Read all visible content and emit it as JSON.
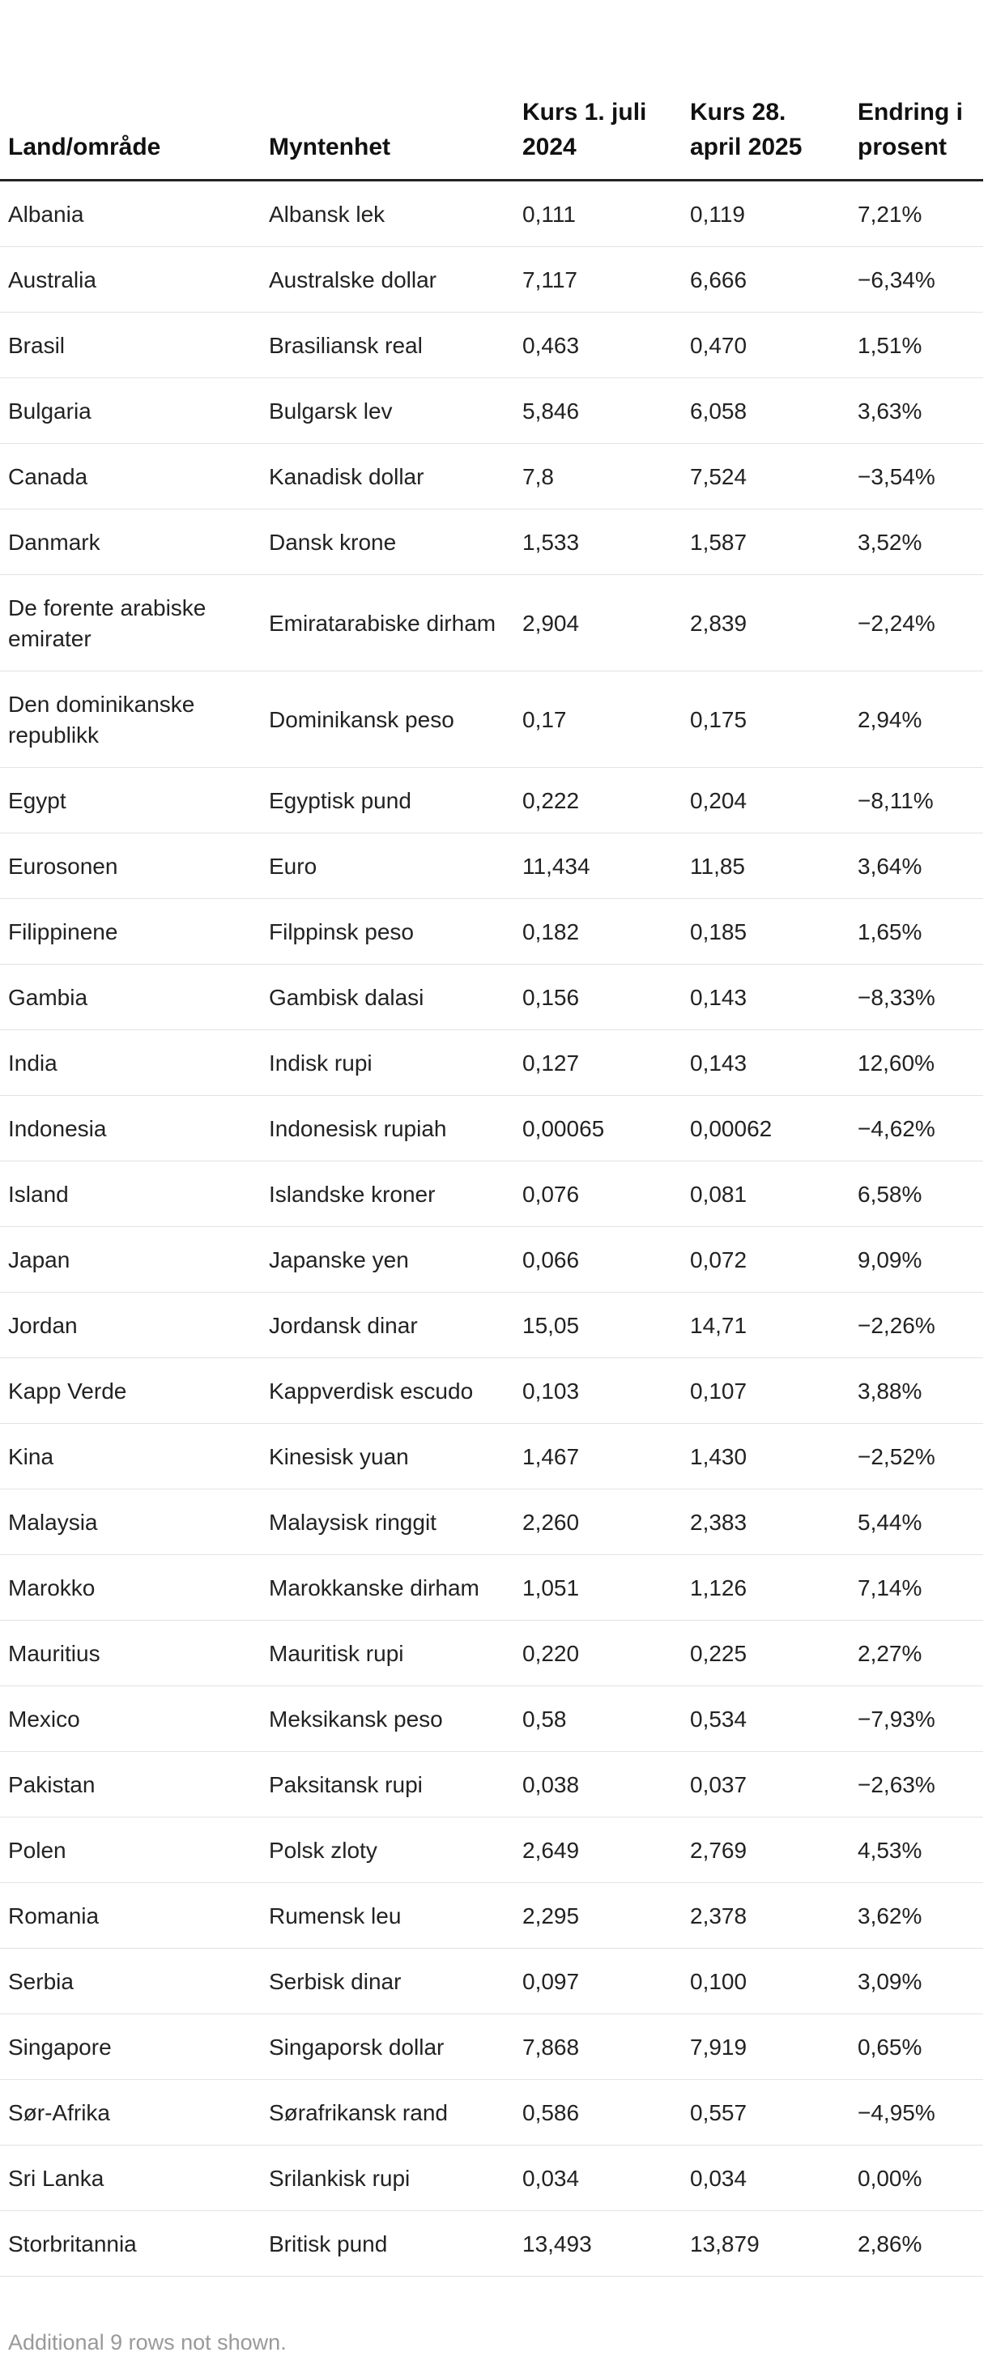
{
  "table": {
    "headers": [
      "Land/område",
      "Myntenhet",
      "Kurs 1. juli 2024",
      "Kurs 28. april 2025",
      "Endring i prosent"
    ],
    "rows": [
      [
        "Albania",
        "Albansk lek",
        "0,111",
        "0,119",
        "7,21%"
      ],
      [
        "Australia",
        "Australske dollar",
        "7,117",
        "6,666",
        "−6,34%"
      ],
      [
        "Brasil",
        "Brasiliansk real",
        "0,463",
        "0,470",
        "1,51%"
      ],
      [
        "Bulgaria",
        "Bulgarsk lev",
        "5,846",
        "6,058",
        "3,63%"
      ],
      [
        "Canada",
        "Kanadisk dollar",
        "7,8",
        "7,524",
        "−3,54%"
      ],
      [
        "Danmark",
        "Dansk krone",
        "1,533",
        "1,587",
        "3,52%"
      ],
      [
        "De forente arabiske emirater",
        "Emiratarabiske dirham",
        "2,904",
        "2,839",
        "−2,24%"
      ],
      [
        "Den dominikanske republikk",
        "Dominikansk peso",
        "0,17",
        "0,175",
        "2,94%"
      ],
      [
        "Egypt",
        "Egyptisk pund",
        "0,222",
        "0,204",
        "−8,11%"
      ],
      [
        "Eurosonen",
        "Euro",
        "11,434",
        "11,85",
        "3,64%"
      ],
      [
        "Filippinene",
        "Filppinsk peso",
        "0,182",
        "0,185",
        "1,65%"
      ],
      [
        "Gambia",
        "Gambisk dalasi",
        "0,156",
        "0,143",
        "−8,33%"
      ],
      [
        "India",
        "Indisk rupi",
        "0,127",
        "0,143",
        "12,60%"
      ],
      [
        "Indonesia",
        "Indonesisk rupiah",
        "0,00065",
        "0,00062",
        "−4,62%"
      ],
      [
        "Island",
        "Islandske kroner",
        "0,076",
        "0,081",
        "6,58%"
      ],
      [
        "Japan",
        "Japanske yen",
        "0,066",
        "0,072",
        "9,09%"
      ],
      [
        "Jordan",
        "Jordansk dinar",
        "15,05",
        "14,71",
        "−2,26%"
      ],
      [
        "Kapp Verde",
        "Kappverdisk escudo",
        "0,103",
        "0,107",
        "3,88%"
      ],
      [
        "Kina",
        "Kinesisk yuan",
        "1,467",
        "1,430",
        "−2,52%"
      ],
      [
        "Malaysia",
        "Malaysisk ringgit",
        "2,260",
        "2,383",
        "5,44%"
      ],
      [
        "Marokko",
        "Marokkanske dirham",
        "1,051",
        "1,126",
        "7,14%"
      ],
      [
        "Mauritius",
        "Mauritisk rupi",
        "0,220",
        "0,225",
        "2,27%"
      ],
      [
        "Mexico",
        "Meksikansk peso",
        "0,58",
        "0,534",
        "−7,93%"
      ],
      [
        "Pakistan",
        "Paksitansk rupi",
        "0,038",
        "0,037",
        "−2,63%"
      ],
      [
        "Polen",
        "Polsk zloty",
        "2,649",
        "2,769",
        "4,53%"
      ],
      [
        "Romania",
        "Rumensk leu",
        "2,295",
        "2,378",
        "3,62%"
      ],
      [
        "Serbia",
        "Serbisk dinar",
        "0,097",
        "0,100",
        "3,09%"
      ],
      [
        "Singapore",
        "Singaporsk dollar",
        "7,868",
        "7,919",
        "0,65%"
      ],
      [
        "Sør-Afrika",
        "Sørafrikansk rand",
        "0,586",
        "0,557",
        "−4,95%"
      ],
      [
        "Sri Lanka",
        "Srilankisk rupi",
        "0,034",
        "0,034",
        "0,00%"
      ],
      [
        "Storbritannia",
        "Britisk pund",
        "13,493",
        "13,879",
        "2,86%"
      ]
    ]
  },
  "footnote": "Additional 9 rows not shown."
}
